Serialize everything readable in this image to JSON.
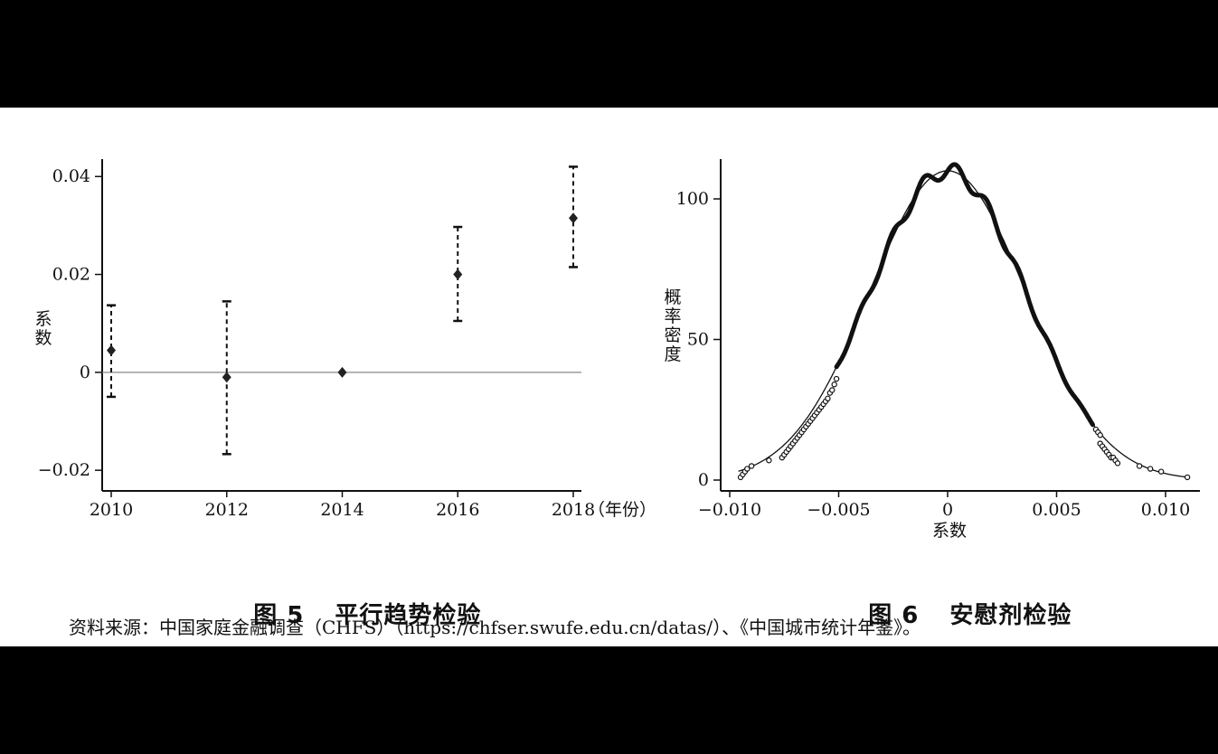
{
  "figures": [
    {
      "caption_number": "图 5",
      "caption_text": "平行趋势检验"
    },
    {
      "caption_number": "图 6",
      "caption_text": "安慰剂检验"
    }
  ],
  "source_note": "资料来源：中国家庭金融调查（CHFS）（https://chfser.swufe.edu.cn/datas/）、《中国城市统计年鉴》。",
  "chart_data": [
    {
      "type": "scatter",
      "subtype": "coefficient plot with error bars",
      "title": "",
      "xlabel": "（年份）",
      "ylabel": "系数",
      "x": [
        2010,
        2012,
        2014,
        2016,
        2018
      ],
      "xticks": [
        "2010",
        "2012",
        "2014",
        "2016",
        "2018"
      ],
      "yticks": [
        "−0.02",
        "0",
        "0.02",
        "0.04"
      ],
      "ytick_values": [
        -0.02,
        0,
        0.02,
        0.04
      ],
      "xlim": [
        2010,
        2018
      ],
      "ylim": [
        -0.022,
        0.043
      ],
      "series": [
        {
          "values": [
            0.0045,
            -0.001,
            0.0,
            0.02,
            0.0315
          ],
          "ci_low": [
            -0.005,
            -0.0167,
            0.0,
            0.0105,
            0.0215
          ],
          "ci_high": [
            0.0137,
            0.0145,
            0.0,
            0.0297,
            0.042
          ]
        }
      ],
      "reference_line": 0,
      "grid": false
    },
    {
      "type": "line",
      "subtype": "kernel density with points and normal fit",
      "title": "",
      "xlabel": "系数",
      "ylabel": "概率密度",
      "xticks": [
        "−0.010",
        "−0.005",
        "0",
        "0.005",
        "0.010"
      ],
      "xtick_values": [
        -0.01,
        -0.005,
        0,
        0.005,
        0.01
      ],
      "yticks": [
        "0",
        "50",
        "100"
      ],
      "ytick_values": [
        0,
        50,
        100
      ],
      "xlim": [
        -0.0102,
        0.0113
      ],
      "ylim": [
        -2,
        113
      ],
      "normal_fit": {
        "mean": 0,
        "sd": 0.0036,
        "peak": 110
      },
      "sample_points": {
        "x": [
          -0.0095,
          -0.0094,
          -0.0093,
          -0.0092,
          -0.009,
          -0.0082,
          -0.0076,
          -0.0075,
          -0.0074,
          -0.0073,
          -0.0072,
          -0.0071,
          -0.007,
          -0.0069,
          -0.0068,
          -0.0067,
          -0.0066,
          -0.0065,
          -0.0064,
          -0.0063,
          -0.0062,
          -0.0061,
          -0.006,
          -0.0059,
          -0.0058,
          -0.0057,
          -0.0056,
          -0.0055,
          -0.0054,
          -0.0053,
          -0.0052,
          -0.0051,
          0.0068,
          0.0069,
          0.007,
          0.007,
          0.0071,
          0.0072,
          0.0073,
          0.0074,
          0.0075,
          0.0076,
          0.0077,
          0.0078,
          0.0088,
          0.0093,
          0.0098,
          0.011
        ],
        "y": [
          1,
          2,
          3,
          4,
          5,
          7,
          8,
          9,
          10,
          11,
          12,
          13,
          14,
          15,
          16,
          17,
          18,
          19,
          20,
          21,
          22,
          23,
          24,
          25,
          26,
          27,
          28,
          29,
          31,
          32,
          34,
          36,
          18,
          17,
          16,
          13,
          12,
          11,
          10,
          9,
          8,
          8,
          7,
          6,
          5,
          4,
          3,
          1
        ]
      },
      "grid": false
    }
  ]
}
